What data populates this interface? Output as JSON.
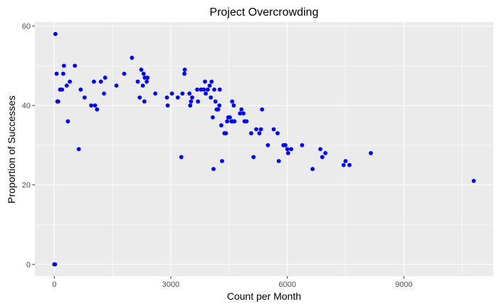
{
  "chart_data": {
    "type": "scatter",
    "title": "Project Overcrowding",
    "xlabel": "Count per Month",
    "ylabel": "Proportion of Successes",
    "xlim": [
      -500,
      11300
    ],
    "ylim": [
      -3,
      61
    ],
    "x_ticks": [
      0,
      3000,
      6000,
      9000
    ],
    "y_ticks": [
      0,
      20,
      40,
      60
    ],
    "x_tick_labels": [
      "0",
      "3000",
      "6000",
      "9000"
    ],
    "y_tick_labels": [
      "0",
      "20",
      "40",
      "60"
    ],
    "grid": true,
    "panel_background": "#ebebeb",
    "grid_color": "#ffffff",
    "point_color": "#0000ff",
    "series": [
      {
        "points": [
          [
            0,
            0
          ],
          [
            20,
            0
          ],
          [
            30,
            58
          ],
          [
            60,
            48
          ],
          [
            80,
            41
          ],
          [
            100,
            41
          ],
          [
            150,
            44
          ],
          [
            200,
            44
          ],
          [
            230,
            48
          ],
          [
            250,
            50
          ],
          [
            320,
            45
          ],
          [
            350,
            36
          ],
          [
            400,
            46
          ],
          [
            530,
            50
          ],
          [
            630,
            29
          ],
          [
            680,
            44
          ],
          [
            780,
            42
          ],
          [
            950,
            40
          ],
          [
            1020,
            46
          ],
          [
            1050,
            40
          ],
          [
            1100,
            39
          ],
          [
            1200,
            46
          ],
          [
            1280,
            43
          ],
          [
            1310,
            47
          ],
          [
            1600,
            45
          ],
          [
            1800,
            48
          ],
          [
            2000,
            52
          ],
          [
            2150,
            46
          ],
          [
            2200,
            42
          ],
          [
            2240,
            49
          ],
          [
            2280,
            45
          ],
          [
            2300,
            48
          ],
          [
            2320,
            41
          ],
          [
            2330,
            47
          ],
          [
            2380,
            46
          ],
          [
            2400,
            47
          ],
          [
            2600,
            43
          ],
          [
            2900,
            42
          ],
          [
            2920,
            40
          ],
          [
            3030,
            43
          ],
          [
            3180,
            42
          ],
          [
            3270,
            27
          ],
          [
            3300,
            43
          ],
          [
            3350,
            48
          ],
          [
            3360,
            49
          ],
          [
            3480,
            43
          ],
          [
            3500,
            40
          ],
          [
            3520,
            41
          ],
          [
            3550,
            42
          ],
          [
            3680,
            44
          ],
          [
            3700,
            41
          ],
          [
            3780,
            44
          ],
          [
            3850,
            44
          ],
          [
            3880,
            46
          ],
          [
            3900,
            43
          ],
          [
            3950,
            44
          ],
          [
            4000,
            45
          ],
          [
            4030,
            42
          ],
          [
            4050,
            46
          ],
          [
            4080,
            37
          ],
          [
            4100,
            24
          ],
          [
            4120,
            44
          ],
          [
            4150,
            41
          ],
          [
            4180,
            39
          ],
          [
            4220,
            39
          ],
          [
            4250,
            40
          ],
          [
            4260,
            44
          ],
          [
            4300,
            35
          ],
          [
            4320,
            26
          ],
          [
            4380,
            33
          ],
          [
            4420,
            33
          ],
          [
            4450,
            36
          ],
          [
            4480,
            37
          ],
          [
            4520,
            37
          ],
          [
            4560,
            36
          ],
          [
            4580,
            41
          ],
          [
            4600,
            36
          ],
          [
            4620,
            40
          ],
          [
            4640,
            36
          ],
          [
            4780,
            38
          ],
          [
            4820,
            39
          ],
          [
            4870,
            38
          ],
          [
            4900,
            36
          ],
          [
            4950,
            36
          ],
          [
            5070,
            33
          ],
          [
            5130,
            27
          ],
          [
            5200,
            34
          ],
          [
            5280,
            33
          ],
          [
            5320,
            34
          ],
          [
            5350,
            39
          ],
          [
            5500,
            30
          ],
          [
            5650,
            34
          ],
          [
            5750,
            33
          ],
          [
            5780,
            26
          ],
          [
            5900,
            30
          ],
          [
            5950,
            30
          ],
          [
            6000,
            29
          ],
          [
            6020,
            28
          ],
          [
            6100,
            29
          ],
          [
            6380,
            30
          ],
          [
            6650,
            24
          ],
          [
            6850,
            29
          ],
          [
            6900,
            27
          ],
          [
            6980,
            28
          ],
          [
            7450,
            25
          ],
          [
            7500,
            26
          ],
          [
            7600,
            25
          ],
          [
            8150,
            28
          ],
          [
            10800,
            21
          ]
        ]
      }
    ]
  }
}
